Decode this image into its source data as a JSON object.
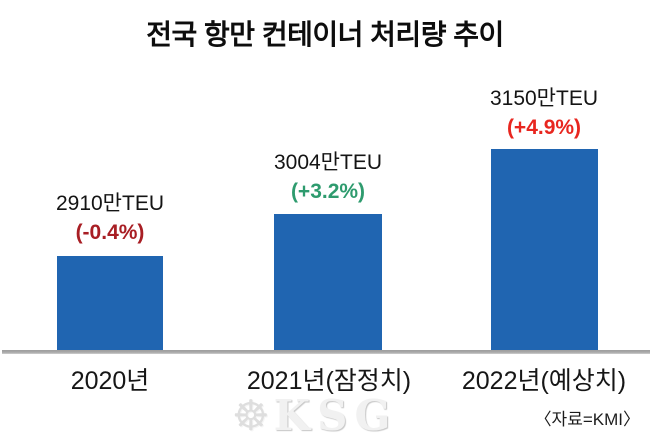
{
  "chart_data": {
    "type": "bar",
    "title": "전국 항만 컨테이너 처리량 추이",
    "categories": [
      "2020년",
      "2021년(잠정치)",
      "2022년(예상치)"
    ],
    "values": [
      2910,
      3004,
      3150
    ],
    "unit": "만TEU",
    "value_labels": [
      "2910만TEU",
      "3004만TEU",
      "3150만TEU"
    ],
    "change_labels": [
      "(-0.4%)",
      "(+3.2%)",
      "(+4.9%)"
    ],
    "change_colors": [
      "#A81E24",
      "#2E9B6E",
      "#E8261F"
    ],
    "bar_color": "#2065B1",
    "axis_line_color": "#A8A8A8",
    "grid": "off",
    "legend": "none",
    "baseline_only": true,
    "source": "〈자료=KMI〉"
  },
  "watermark": {
    "brand": "KSG",
    "icon": "ship-wheel-icon"
  }
}
